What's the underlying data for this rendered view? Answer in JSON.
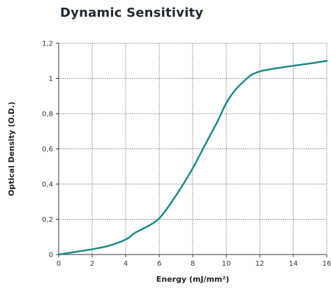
{
  "chart_data": {
    "type": "line",
    "title": "Dynamic Sensitivity",
    "xlabel": "Energy (mJ/mm²)",
    "ylabel": "Optical Density (O.D.)",
    "xlim": [
      0,
      16
    ],
    "ylim": [
      0,
      1.2
    ],
    "x_ticks": [
      "0",
      "2",
      "4",
      "6",
      "8",
      "10",
      "12",
      "14",
      "16"
    ],
    "y_ticks": [
      "0",
      "0,2",
      "0,4",
      "0,6",
      "0,8",
      "1",
      "1,2"
    ],
    "grid": true,
    "grid_style": "dotted",
    "series": [
      {
        "color": "#1a8a86",
        "x": [
          0,
          1,
          2,
          3,
          4,
          4.5,
          5,
          5.5,
          6,
          6.5,
          7,
          7.5,
          8,
          8.5,
          9,
          9.5,
          10,
          10.5,
          11,
          11.5,
          12,
          12.5,
          13,
          14,
          15,
          16
        ],
        "y": [
          0,
          0.015,
          0.03,
          0.05,
          0.085,
          0.12,
          0.145,
          0.17,
          0.205,
          0.265,
          0.335,
          0.41,
          0.49,
          0.58,
          0.67,
          0.76,
          0.86,
          0.93,
          0.98,
          1.02,
          1.04,
          1.05,
          1.058,
          1.072,
          1.085,
          1.1
        ]
      }
    ]
  }
}
